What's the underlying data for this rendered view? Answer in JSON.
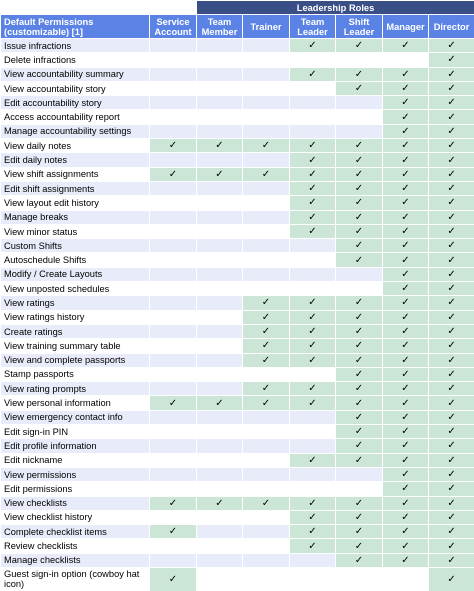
{
  "banner": {
    "title": "Leadership Roles"
  },
  "columns": {
    "permissions_header": "Default Permissions (customizable) [1]",
    "roles": [
      "Service Account",
      "Team Member",
      "Trainer",
      "Team Leader",
      "Shift Leader",
      "Manager",
      "Director"
    ]
  },
  "check_glyph": "✓",
  "colors": {
    "header": "#5b83e6",
    "banner": "#3a4f86",
    "granted": "#cbe6d6",
    "stripe": "#e8ecfa"
  },
  "rows": [
    {
      "label": "Issue infractions",
      "grants": [
        0,
        0,
        0,
        1,
        1,
        1,
        1
      ]
    },
    {
      "label": "Delete infractions",
      "grants": [
        0,
        0,
        0,
        0,
        0,
        0,
        1
      ]
    },
    {
      "label": "View accountability summary",
      "grants": [
        0,
        0,
        0,
        1,
        1,
        1,
        1
      ]
    },
    {
      "label": "View accountability story",
      "grants": [
        0,
        0,
        0,
        0,
        1,
        1,
        1
      ]
    },
    {
      "label": "Edit accountability story",
      "grants": [
        0,
        0,
        0,
        0,
        0,
        1,
        1
      ]
    },
    {
      "label": "Access accountability report",
      "grants": [
        0,
        0,
        0,
        0,
        0,
        1,
        1
      ]
    },
    {
      "label": "Manage accountability settings",
      "grants": [
        0,
        0,
        0,
        0,
        0,
        1,
        1
      ]
    },
    {
      "label": "View daily notes",
      "grants": [
        1,
        1,
        1,
        1,
        1,
        1,
        1
      ]
    },
    {
      "label": "Edit daily notes",
      "grants": [
        0,
        0,
        0,
        1,
        1,
        1,
        1
      ]
    },
    {
      "label": "View shift assignments",
      "grants": [
        1,
        1,
        1,
        1,
        1,
        1,
        1
      ]
    },
    {
      "label": "Edit shift assignments",
      "grants": [
        0,
        0,
        0,
        1,
        1,
        1,
        1
      ]
    },
    {
      "label": "View layout edit history",
      "grants": [
        0,
        0,
        0,
        1,
        1,
        1,
        1
      ]
    },
    {
      "label": "Manage breaks",
      "grants": [
        0,
        0,
        0,
        1,
        1,
        1,
        1
      ]
    },
    {
      "label": "View minor status",
      "grants": [
        0,
        0,
        0,
        1,
        1,
        1,
        1
      ]
    },
    {
      "label": "Custom Shifts",
      "grants": [
        0,
        0,
        0,
        0,
        1,
        1,
        1
      ]
    },
    {
      "label": "Autoschedule Shifts",
      "grants": [
        0,
        0,
        0,
        0,
        1,
        1,
        1
      ]
    },
    {
      "label": "Modify / Create Layouts",
      "grants": [
        0,
        0,
        0,
        0,
        0,
        1,
        1
      ]
    },
    {
      "label": "View unposted schedules",
      "grants": [
        0,
        0,
        0,
        0,
        0,
        1,
        1
      ]
    },
    {
      "label": "View ratings",
      "grants": [
        0,
        0,
        1,
        1,
        1,
        1,
        1
      ]
    },
    {
      "label": "View ratings history",
      "grants": [
        0,
        0,
        1,
        1,
        1,
        1,
        1
      ]
    },
    {
      "label": "Create ratings",
      "grants": [
        0,
        0,
        1,
        1,
        1,
        1,
        1
      ]
    },
    {
      "label": "View training summary table",
      "grants": [
        0,
        0,
        1,
        1,
        1,
        1,
        1
      ]
    },
    {
      "label": "View and complete passports",
      "grants": [
        0,
        0,
        1,
        1,
        1,
        1,
        1
      ]
    },
    {
      "label": "Stamp passports",
      "grants": [
        0,
        0,
        0,
        0,
        1,
        1,
        1
      ]
    },
    {
      "label": "View rating prompts",
      "grants": [
        0,
        0,
        1,
        1,
        1,
        1,
        1
      ]
    },
    {
      "label": "View personal information",
      "grants": [
        1,
        1,
        1,
        1,
        1,
        1,
        1
      ]
    },
    {
      "label": "View emergency contact info",
      "grants": [
        0,
        0,
        0,
        0,
        1,
        1,
        1
      ]
    },
    {
      "label": "Edit sign-in PIN",
      "grants": [
        0,
        0,
        0,
        0,
        1,
        1,
        1
      ]
    },
    {
      "label": "Edit profile information",
      "grants": [
        0,
        0,
        0,
        0,
        1,
        1,
        1
      ]
    },
    {
      "label": "Edit nickname",
      "grants": [
        0,
        0,
        0,
        1,
        1,
        1,
        1
      ]
    },
    {
      "label": "View permissions",
      "grants": [
        0,
        0,
        0,
        0,
        0,
        1,
        1
      ]
    },
    {
      "label": "Edit permissions",
      "grants": [
        0,
        0,
        0,
        0,
        0,
        1,
        1
      ]
    },
    {
      "label": "View checklists",
      "grants": [
        1,
        1,
        1,
        1,
        1,
        1,
        1
      ]
    },
    {
      "label": "View checklist history",
      "grants": [
        0,
        0,
        0,
        1,
        1,
        1,
        1
      ]
    },
    {
      "label": "Complete checklist items",
      "grants": [
        1,
        0,
        0,
        1,
        1,
        1,
        1
      ]
    },
    {
      "label": "Review checklists",
      "grants": [
        0,
        0,
        0,
        1,
        1,
        1,
        1
      ]
    },
    {
      "label": "Manage checklists",
      "grants": [
        0,
        0,
        0,
        0,
        1,
        1,
        1
      ]
    },
    {
      "label": "Guest sign-in option (cowboy hat icon)",
      "grants": [
        1,
        0,
        0,
        0,
        0,
        0,
        1
      ]
    }
  ]
}
